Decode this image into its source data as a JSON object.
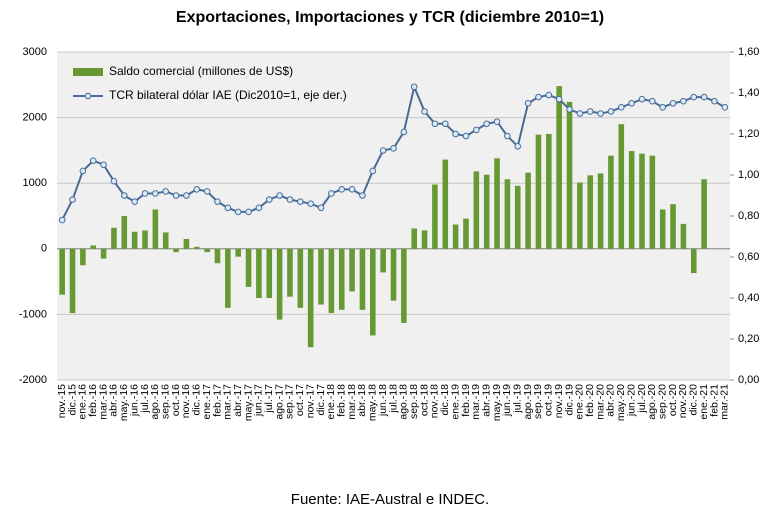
{
  "chart_data": {
    "type": "bar",
    "title": "Exportaciones, Importaciones y TCR (diciembre 2010=1)",
    "source": "Fuente: IAE-Austral e INDEC.",
    "categories": [
      "nov.-15",
      "dic.-15",
      "ene.-16",
      "feb.-16",
      "mar.-16",
      "abr.-16",
      "may.-16",
      "jun.-16",
      "jul.-16",
      "ago.-16",
      "sep.-16",
      "oct.-16",
      "nov.-16",
      "dic.-16",
      "ene.-17",
      "feb.-17",
      "mar.-17",
      "abr.-17",
      "may.-17",
      "jun.-17",
      "jul.-17",
      "ago.-17",
      "sep.-17",
      "oct.-17",
      "nov.-17",
      "dic.-17",
      "ene.-18",
      "feb.-18",
      "mar.-18",
      "abr.-18",
      "may.-18",
      "jun.-18",
      "jul.-18",
      "ago.-18",
      "sep.-18",
      "oct.-18",
      "nov.-18",
      "dic.-18",
      "ene.-19",
      "feb.-19",
      "mar.-19",
      "abr.-19",
      "may.-19",
      "jun.-19",
      "jul.-19",
      "ago.-19",
      "sep.-19",
      "oct.-19",
      "nov.-19",
      "dic.-19",
      "ene.-20",
      "feb.-20",
      "mar.-20",
      "abr.-20",
      "may.-20",
      "jun.-20",
      "jul.-20",
      "ago.-20",
      "sep.-20",
      "oct.-20",
      "nov.-20",
      "dic.-20",
      "ene.-21",
      "feb.-21",
      "mar.-21"
    ],
    "series": [
      {
        "name": "Saldo comercial (millones de US$)",
        "type": "bar",
        "color": "#669933",
        "values": [
          -700,
          -980,
          -250,
          50,
          -150,
          320,
          500,
          260,
          280,
          600,
          250,
          -50,
          150,
          30,
          -50,
          -220,
          -900,
          -120,
          -580,
          -750,
          -750,
          -1080,
          -730,
          -900,
          -1500,
          -850,
          -980,
          -930,
          -650,
          -930,
          -1320,
          -360,
          -790,
          -1130,
          310,
          280,
          980,
          1360,
          370,
          460,
          1180,
          1130,
          1380,
          1060,
          960,
          1160,
          1740,
          1750,
          2480,
          2240,
          1010,
          1120,
          1150,
          1420,
          1900,
          1490,
          1450,
          1420,
          600,
          680,
          380,
          -370,
          1060,
          null,
          null
        ]
      },
      {
        "name": "TCR bilateral dólar IAE (Dic2010=1, eje der.)",
        "type": "line",
        "axis": "y2",
        "color": "#4a6a96",
        "values": [
          0.78,
          0.88,
          1.02,
          1.07,
          1.05,
          0.97,
          0.9,
          0.87,
          0.91,
          0.91,
          0.92,
          0.9,
          0.9,
          0.93,
          0.92,
          0.87,
          0.84,
          0.82,
          0.82,
          0.84,
          0.88,
          0.9,
          0.88,
          0.87,
          0.86,
          0.84,
          0.91,
          0.93,
          0.93,
          0.9,
          1.02,
          1.12,
          1.13,
          1.21,
          1.43,
          1.31,
          1.25,
          1.25,
          1.2,
          1.19,
          1.22,
          1.25,
          1.26,
          1.19,
          1.14,
          1.35,
          1.38,
          1.39,
          1.37,
          1.32,
          1.3,
          1.31,
          1.3,
          1.31,
          1.33,
          1.35,
          1.37,
          1.36,
          1.33,
          1.35,
          1.36,
          1.38,
          1.38,
          1.36,
          1.33
        ]
      }
    ],
    "ylim": [
      -2000,
      3000
    ],
    "yticks": [
      3000,
      2000,
      1000,
      0,
      -1000,
      -2000
    ],
    "y2lim": [
      0,
      1.6
    ],
    "y2ticks": [
      {
        "value": 1.6,
        "label": "1,60"
      },
      {
        "value": 1.4,
        "label": "1,40"
      },
      {
        "value": 1.2,
        "label": "1,20"
      },
      {
        "value": 1,
        "label": "1,00"
      },
      {
        "value": 0.8,
        "label": "0,80"
      },
      {
        "value": 0.6,
        "label": "0,60"
      },
      {
        "value": 0.4,
        "label": "0,40"
      },
      {
        "value": 0.2,
        "label": "0,20"
      },
      {
        "value": 0,
        "label": "0,00"
      }
    ],
    "grid": true,
    "legend": "upper-left"
  }
}
